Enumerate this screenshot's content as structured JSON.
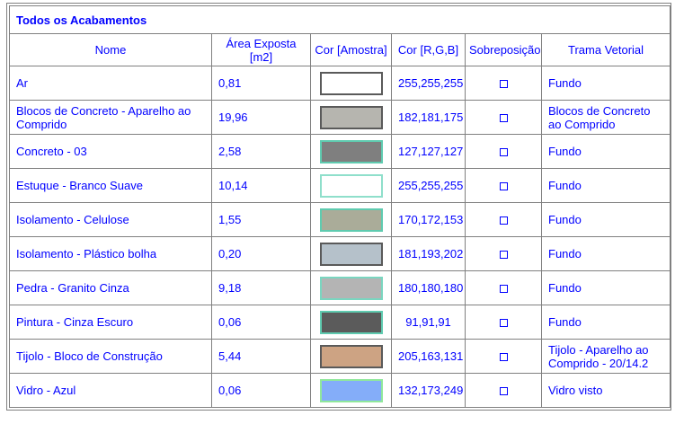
{
  "report": {
    "title": "Todos os Acabamentos"
  },
  "table": {
    "columns": [
      {
        "key": "name",
        "label": "Nome"
      },
      {
        "key": "area",
        "label": "Área Exposta [m2]"
      },
      {
        "key": "swatch",
        "label": "Cor [Amostra]"
      },
      {
        "key": "rgb",
        "label": "Cor [R,G,B]"
      },
      {
        "key": "overlay",
        "label": "Sobreposição"
      },
      {
        "key": "pattern",
        "label": "Trama Vetorial"
      }
    ],
    "rows": [
      {
        "name": "Ar",
        "area": "0,81",
        "rgb": "255,255,255",
        "swatch_fill": "#ffffff",
        "swatch_border": "#5a5a5a",
        "overlay_checked": false,
        "pattern": "Fundo"
      },
      {
        "name": "Blocos de Concreto - Aparelho ao Comprido",
        "area": "19,96",
        "rgb": "182,181,175",
        "swatch_fill": "#b6b5af",
        "swatch_border": "#5a5a5a",
        "overlay_checked": false,
        "pattern": "Blocos de Concreto ao Comprido"
      },
      {
        "name": "Concreto - 03",
        "area": "2,58",
        "rgb": "127,127,127",
        "swatch_fill": "#7f7f7f",
        "swatch_border": "#5fcbb0",
        "overlay_checked": false,
        "pattern": "Fundo"
      },
      {
        "name": "Estuque - Branco Suave",
        "area": "10,14",
        "rgb": "255,255,255",
        "swatch_fill": "#ffffff",
        "swatch_border": "#8fdfcb",
        "overlay_checked": false,
        "pattern": "Fundo"
      },
      {
        "name": "Isolamento - Celulose",
        "area": "1,55",
        "rgb": "170,172,153",
        "swatch_fill": "#aaac99",
        "swatch_border": "#5fcbb0",
        "overlay_checked": false,
        "pattern": "Fundo"
      },
      {
        "name": "Isolamento - Plástico bolha",
        "area": "0,20",
        "rgb": "181,193,202",
        "swatch_fill": "#b5c1ca",
        "swatch_border": "#5a5a5a",
        "overlay_checked": false,
        "pattern": "Fundo"
      },
      {
        "name": "Pedra - Granito Cinza",
        "area": "9,18",
        "rgb": "180,180,180",
        "swatch_fill": "#b4b4b4",
        "swatch_border": "#7ad6c0",
        "overlay_checked": false,
        "pattern": "Fundo"
      },
      {
        "name": "Pintura - Cinza Escuro",
        "area": "0,06",
        "rgb": "91,91,91",
        "swatch_fill": "#5b5b5b",
        "swatch_border": "#5fcbb0",
        "overlay_checked": false,
        "pattern": "Fundo"
      },
      {
        "name": "Tijolo - Bloco de Construção",
        "area": "5,44",
        "rgb": "205,163,131",
        "swatch_fill": "#cda383",
        "swatch_border": "#5a5a5a",
        "overlay_checked": false,
        "pattern": "Tijolo - Aparelho ao Comprido - 20/14.2"
      },
      {
        "name": "Vidro - Azul",
        "area": "0,06",
        "rgb": "132,173,249",
        "swatch_fill": "#84adf9",
        "swatch_border": "#90e89b",
        "overlay_checked": false,
        "pattern": "Vidro visto"
      }
    ]
  },
  "colors": {
    "text": "#0000ff",
    "grid": "#808080",
    "background": "#ffffff"
  }
}
